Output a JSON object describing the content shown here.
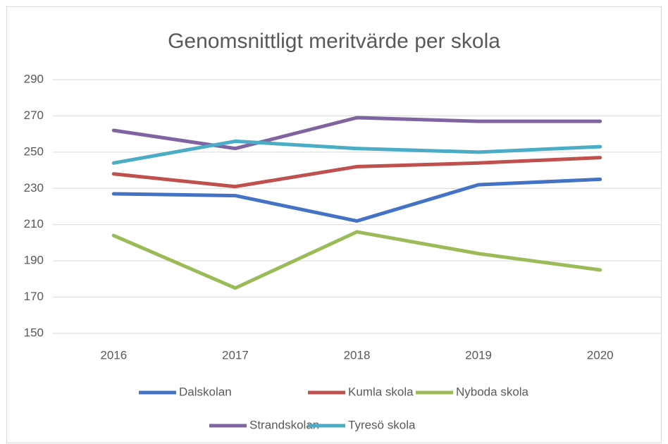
{
  "chart_data": {
    "type": "line",
    "title": "Genomsnittligt meritvärde per skola",
    "categories": [
      "2016",
      "2017",
      "2018",
      "2019",
      "2020"
    ],
    "series": [
      {
        "name": "Dalskolan",
        "color": "#4472c4",
        "values": [
          227,
          226,
          212,
          232,
          235
        ]
      },
      {
        "name": "Kumla skola",
        "color": "#c0504d",
        "values": [
          238,
          231,
          242,
          244,
          247
        ]
      },
      {
        "name": "Nyboda skola",
        "color": "#9bbb59",
        "values": [
          204,
          175,
          206,
          194,
          185
        ]
      },
      {
        "name": "Strandskolan",
        "color": "#8064a2",
        "values": [
          262,
          252,
          269,
          267,
          267
        ]
      },
      {
        "name": "Tyresö skola",
        "color": "#4bacc6",
        "values": [
          244,
          256,
          252,
          250,
          253
        ]
      }
    ],
    "ylim": [
      150,
      290
    ],
    "yticks": [
      150,
      170,
      190,
      210,
      230,
      250,
      270,
      290
    ],
    "grid": true,
    "legend": "bottom"
  }
}
